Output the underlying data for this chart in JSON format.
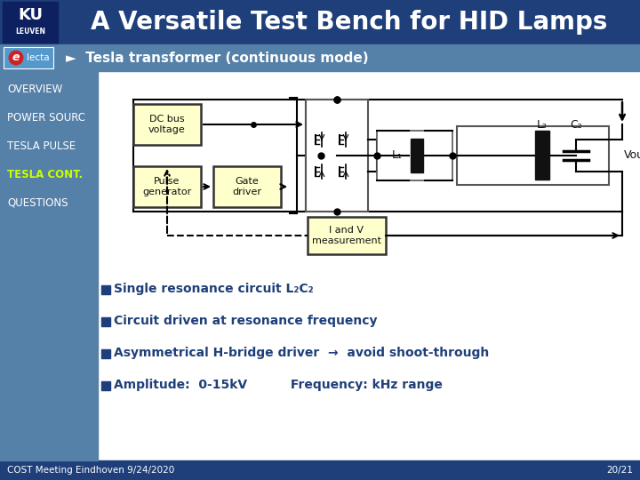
{
  "title": "A Versatile Test Bench for HID Lamps",
  "subtitle": "►  Tesla transformer (continuous mode)",
  "nav_items": [
    "OVERVIEW",
    "POWER SOURC",
    "TESLA PULSE",
    "TESLA CONT.",
    "QUESTIONS"
  ],
  "nav_active": "TESLA CONT.",
  "nav_active_color": "#ccff00",
  "nav_inactive_color": "#ffffff",
  "header_bg": "#1e3f7a",
  "subheader_bg": "#5580a8",
  "sidebar_bg": "#5580a8",
  "footer_bg": "#1e3f7a",
  "box_fill": "#ffffcc",
  "box_edge": "#333333",
  "bullet_items": [
    "Single resonance circuit L₂C₂",
    "Circuit driven at resonance frequency",
    "Asymmetrical H-bridge driver  →  avoid shoot-through",
    "Amplitude:  0-15kV          Frequency: kHz range"
  ],
  "footer_left": "COST Meeting Eindhoven 9/24/2020",
  "footer_right": "20/21",
  "content_bg": "#ffffff",
  "bullet_color": "#1e3f7a"
}
